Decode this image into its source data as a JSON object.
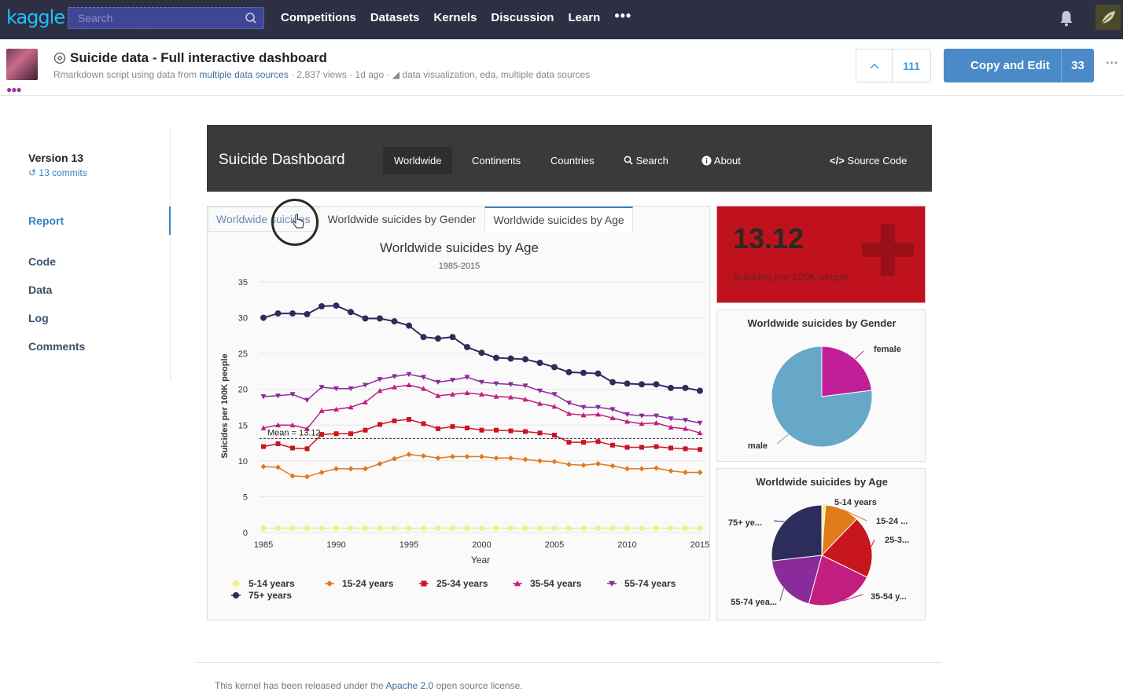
{
  "nav": {
    "logo": "kaggle",
    "search_placeholder": "Search",
    "links": [
      "Competitions",
      "Datasets",
      "Kernels",
      "Discussion",
      "Learn"
    ],
    "more": "•••"
  },
  "kernel": {
    "title": "Suicide data - Full interactive dashboard",
    "meta_prefix": "Rmarkdown script using data from",
    "meta_source": "multiple data sources",
    "meta_views": "· 2,837 views ·",
    "meta_time": "1d ago ·",
    "meta_tags": "data visualization, eda, multiple data sources",
    "votes": "111",
    "copy_label": "Copy and Edit",
    "copy_count": "33",
    "more": "···"
  },
  "sidebar": {
    "version": "Version 13",
    "commits": "13 commits",
    "items": [
      "Report",
      "Code",
      "Data",
      "Log",
      "Comments"
    ]
  },
  "dashboard": {
    "brand": "Suicide Dashboard",
    "tabs": [
      "Worldwide",
      "Continents",
      "Countries",
      "Search",
      "About"
    ],
    "source": "Source Code"
  },
  "chart_tabs": [
    "Worldwide suicides",
    "Worldwide suicides by Gender",
    "Worldwide suicides by Age"
  ],
  "kpi": {
    "value": "13.12",
    "label": "Suicides per 100K people"
  },
  "colors": {
    "c514": "#f3ee8a",
    "c1524": "#e07a1a",
    "c2534": "#c8161e",
    "c3554": "#c21e80",
    "c5574": "#8b2a9a",
    "c75": "#2c2d5a",
    "male": "#67a8c8",
    "female": "#c21e9a"
  },
  "chart_data": [
    {
      "type": "line",
      "title": "Worldwide suicides by Age",
      "subtitle": "1985-2015",
      "xlabel": "Year",
      "ylabel": "Suicides per 100K people",
      "xlim": [
        1985,
        2015
      ],
      "ylim": [
        0,
        35
      ],
      "xticks": [
        1985,
        1990,
        1995,
        2000,
        2005,
        2010,
        2015
      ],
      "yticks": [
        0,
        5,
        10,
        15,
        20,
        25,
        30,
        35
      ],
      "mean_label": "Mean = 13.12",
      "mean": 13.12,
      "legend": "bottom",
      "x": [
        1985,
        1986,
        1987,
        1988,
        1989,
        1990,
        1991,
        1992,
        1993,
        1994,
        1995,
        1996,
        1997,
        1998,
        1999,
        2000,
        2001,
        2002,
        2003,
        2004,
        2005,
        2006,
        2007,
        2008,
        2009,
        2010,
        2011,
        2012,
        2013,
        2014,
        2015
      ],
      "series": [
        {
          "name": "5-14 years",
          "color": "#f3ee8a",
          "marker": "circle",
          "values": [
            0.6,
            0.6,
            0.6,
            0.6,
            0.6,
            0.6,
            0.6,
            0.6,
            0.6,
            0.6,
            0.6,
            0.6,
            0.6,
            0.6,
            0.6,
            0.6,
            0.6,
            0.6,
            0.6,
            0.6,
            0.6,
            0.6,
            0.6,
            0.6,
            0.6,
            0.6,
            0.6,
            0.6,
            0.6,
            0.6,
            0.6
          ]
        },
        {
          "name": "15-24 years",
          "color": "#e07a1a",
          "marker": "diamond",
          "values": [
            9.2,
            9.1,
            7.9,
            7.8,
            8.4,
            8.9,
            8.9,
            8.9,
            9.6,
            10.3,
            10.9,
            10.7,
            10.4,
            10.6,
            10.6,
            10.6,
            10.4,
            10.4,
            10.2,
            10.0,
            9.9,
            9.5,
            9.4,
            9.6,
            9.3,
            8.9,
            8.9,
            9.0,
            8.6,
            8.4,
            8.4
          ]
        },
        {
          "name": "25-34 years",
          "color": "#c8161e",
          "marker": "square",
          "values": [
            12.0,
            12.4,
            11.8,
            11.7,
            13.7,
            13.8,
            13.8,
            14.3,
            15.1,
            15.6,
            15.8,
            15.2,
            14.5,
            14.8,
            14.6,
            14.3,
            14.3,
            14.2,
            14.1,
            13.9,
            13.6,
            12.6,
            12.6,
            12.7,
            12.2,
            11.9,
            11.9,
            12.0,
            11.8,
            11.7,
            11.6
          ]
        },
        {
          "name": "35-54 years",
          "color": "#c21e80",
          "marker": "triangle",
          "values": [
            14.6,
            15.0,
            15.0,
            14.5,
            17.0,
            17.2,
            17.5,
            18.2,
            19.8,
            20.3,
            20.6,
            20.1,
            19.1,
            19.3,
            19.5,
            19.3,
            19.0,
            18.9,
            18.6,
            18.0,
            17.6,
            16.6,
            16.4,
            16.5,
            16.0,
            15.5,
            15.2,
            15.3,
            14.7,
            14.5,
            13.9
          ]
        },
        {
          "name": "55-74 years",
          "color": "#8b2a9a",
          "marker": "triangle-down",
          "values": [
            19.0,
            19.1,
            19.3,
            18.5,
            20.3,
            20.1,
            20.1,
            20.6,
            21.4,
            21.8,
            22.1,
            21.7,
            21.0,
            21.3,
            21.7,
            21.0,
            20.8,
            20.7,
            20.5,
            19.8,
            19.3,
            18.1,
            17.5,
            17.5,
            17.2,
            16.5,
            16.3,
            16.3,
            15.9,
            15.7,
            15.3
          ]
        },
        {
          "name": "75+ years",
          "color": "#2c2d5a",
          "marker": "circle",
          "values": [
            30.0,
            30.6,
            30.6,
            30.5,
            31.6,
            31.7,
            30.8,
            29.9,
            29.9,
            29.5,
            28.9,
            27.3,
            27.1,
            27.3,
            25.9,
            25.1,
            24.4,
            24.3,
            24.2,
            23.7,
            23.1,
            22.4,
            22.3,
            22.2,
            21.0,
            20.8,
            20.7,
            20.7,
            20.2,
            20.2,
            19.8
          ]
        }
      ]
    },
    {
      "type": "pie",
      "title": "Worldwide suicides by Gender",
      "categories": [
        "female",
        "male"
      ],
      "values": [
        23,
        77
      ],
      "colors": [
        "#c21e9a",
        "#67a8c8"
      ]
    },
    {
      "type": "pie",
      "title": "Worldwide suicides by Age",
      "categories": [
        "5-14 years",
        "15-24 ...",
        "25-3...",
        "35-54 y...",
        "55-74 yea...",
        "75+ ye..."
      ],
      "values": [
        1.2,
        11,
        20,
        22,
        19,
        26.8
      ],
      "colors": [
        "#f3ee8a",
        "#e07a1a",
        "#c8161e",
        "#c21e80",
        "#8b2a9a",
        "#2c2d5a"
      ]
    }
  ],
  "footer": {
    "prefix": "This kernel has been released under the",
    "link": "Apache 2.0",
    "suffix": "open source license."
  }
}
